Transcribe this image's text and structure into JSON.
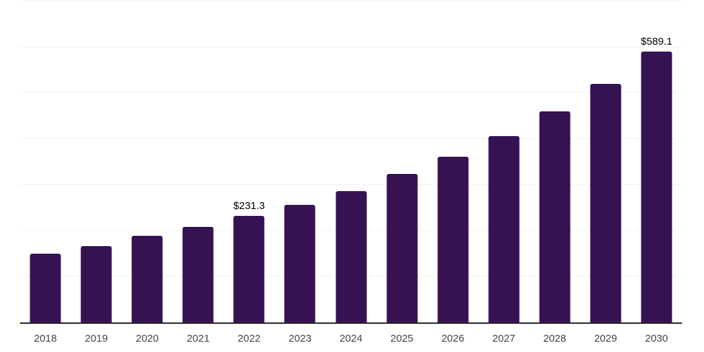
{
  "chart_data": {
    "type": "bar",
    "title": "",
    "xlabel": "",
    "ylabel": "",
    "categories": [
      "2018",
      "2019",
      "2020",
      "2021",
      "2022",
      "2023",
      "2024",
      "2025",
      "2026",
      "2027",
      "2028",
      "2029",
      "2030"
    ],
    "values": [
      149.2,
      165.6,
      187.9,
      207.3,
      231.3,
      256.5,
      286.4,
      323.6,
      361.0,
      405.7,
      459.4,
      519.0,
      589.1
    ],
    "point_labels": [
      null,
      null,
      null,
      null,
      "$231.3",
      null,
      null,
      null,
      null,
      null,
      null,
      null,
      "$589.1"
    ],
    "ylim": [
      0,
      700
    ],
    "grid_step": 100,
    "grid": true,
    "legend": false,
    "y_tick_labels_visible": false
  },
  "colors": {
    "bar": "#361253",
    "gridline": "#f2f2f2",
    "axis_line": "#262626",
    "tick_label": "#444444",
    "value_label": "#000000",
    "background": "#ffffff"
  }
}
